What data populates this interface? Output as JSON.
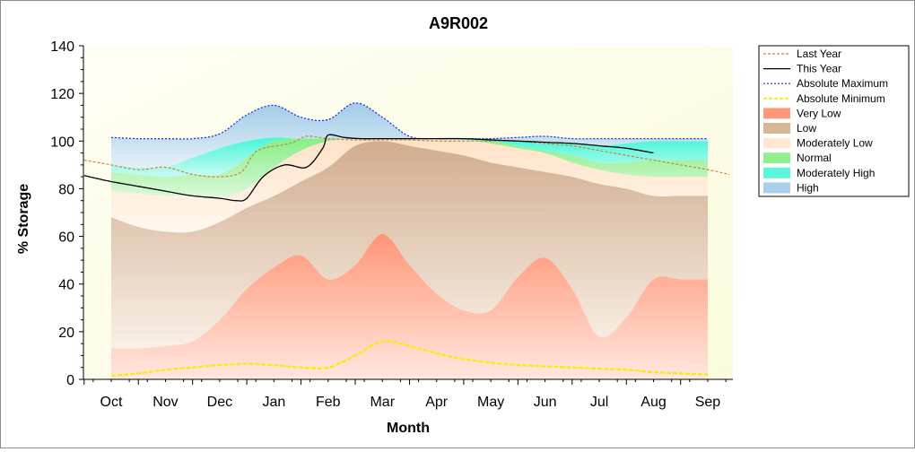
{
  "chart_data": {
    "type": "area",
    "title": "A9R002",
    "xlabel": "Month",
    "ylabel": "% Storage",
    "ylim": [
      0,
      140
    ],
    "yticks": [
      0,
      20,
      40,
      60,
      80,
      100,
      120,
      140
    ],
    "categories": [
      "Oct",
      "Nov",
      "Dec",
      "Jan",
      "Feb",
      "Mar",
      "Apr",
      "May",
      "Jun",
      "Jul",
      "Aug",
      "Sep"
    ],
    "legend_position": "right",
    "band_bounds": {
      "x": [
        0,
        0.5,
        1,
        1.5,
        2,
        2.5,
        3,
        3.5,
        4,
        4.5,
        5,
        5.5,
        6,
        6.5,
        7,
        7.5,
        8,
        8.5,
        9,
        9.5,
        10,
        10.5,
        11
      ],
      "min": [
        1.5,
        2.5,
        4,
        5,
        6,
        6.5,
        6,
        5,
        5,
        10,
        16,
        14,
        11,
        8.5,
        7,
        6,
        5.5,
        5,
        4.5,
        4,
        3,
        2.5,
        2
      ],
      "very_low": [
        13,
        13,
        14,
        16,
        25,
        38,
        47,
        52,
        42,
        48,
        61,
        48,
        36,
        29,
        29,
        43,
        51,
        38,
        18,
        26,
        42,
        42,
        42
      ],
      "low": [
        68,
        64,
        62,
        62,
        66,
        72,
        77,
        83,
        89,
        98,
        100,
        98,
        96,
        94,
        91,
        89,
        87,
        85,
        82,
        80,
        77,
        77,
        77
      ],
      "mod_low": [
        79,
        78,
        77,
        77,
        76,
        80,
        89,
        96,
        100,
        101,
        101,
        101,
        101,
        100.5,
        99,
        97,
        95,
        91,
        88,
        86,
        85,
        85,
        85
      ],
      "normal": [
        87,
        86,
        85,
        86,
        86,
        93,
        100,
        101,
        101,
        101,
        101,
        101,
        101,
        100.5,
        100,
        98,
        96,
        94,
        91,
        91,
        92,
        92,
        92
      ],
      "mod_high": [
        90,
        89,
        89,
        93,
        97,
        100,
        101.5,
        101,
        101,
        101,
        101,
        101,
        101,
        101,
        101,
        100,
        99,
        99,
        98,
        99,
        100,
        100,
        100
      ],
      "max": [
        101.5,
        101,
        101,
        101,
        103,
        111,
        115,
        110,
        109,
        116,
        110,
        102,
        101,
        101,
        101,
        101.5,
        102,
        101,
        101,
        101,
        101,
        101,
        101
      ]
    },
    "series": [
      {
        "name": "Last Year",
        "x": [
          -0.5,
          0,
          0.5,
          1,
          1.5,
          2,
          2.4,
          2.7,
          3.3,
          3.6,
          4,
          4.5,
          5,
          5.5,
          6,
          6.5,
          7,
          7.5,
          8,
          8.5,
          9,
          9.5,
          10,
          10.5,
          11,
          11.4
        ],
        "y": [
          92,
          90,
          88,
          89,
          86,
          85,
          87,
          96,
          99,
          102,
          101,
          100.5,
          100.5,
          100.5,
          100,
          100,
          100,
          100,
          99,
          98,
          96,
          94,
          92,
          90,
          88,
          86
        ]
      },
      {
        "name": "This Year",
        "x": [
          -0.5,
          0,
          0.5,
          1,
          1.5,
          2,
          2.3,
          2.5,
          2.8,
          3.2,
          3.6,
          3.9,
          4,
          4.3,
          4.6,
          5,
          5.5,
          6,
          6.5,
          7,
          7.5,
          8,
          8.5,
          9,
          9.5,
          10
        ],
        "y": [
          85.5,
          83,
          81,
          79,
          77,
          76,
          75,
          76,
          85,
          90,
          89,
          97,
          102.5,
          101.5,
          101,
          101,
          101,
          101,
          101,
          100.5,
          100,
          99.5,
          99,
          98,
          97,
          95
        ]
      }
    ],
    "legend": [
      {
        "label": "Last Year",
        "type": "line",
        "color": "#c8843c",
        "dash": "3,2"
      },
      {
        "label": "This Year",
        "type": "line",
        "color": "#000000",
        "dash": ""
      },
      {
        "label": "Absolute Maximum",
        "type": "line",
        "color": "#1e1ee6",
        "dash": "2,2"
      },
      {
        "label": "Absolute Minimum",
        "type": "line",
        "color": "#f0f000",
        "dash": "4,2"
      },
      {
        "label": "Very Low",
        "type": "fill",
        "color": "#ff9878"
      },
      {
        "label": "Low",
        "type": "fill",
        "color": "#d4b896"
      },
      {
        "label": "Moderately Low",
        "type": "fill",
        "color": "#ffe8d2"
      },
      {
        "label": "Normal",
        "type": "fill",
        "color": "#8ef08e"
      },
      {
        "label": "Moderately High",
        "type": "fill",
        "color": "#5af5da"
      },
      {
        "label": "High",
        "type": "fill",
        "color": "#a8d0ec"
      }
    ]
  }
}
